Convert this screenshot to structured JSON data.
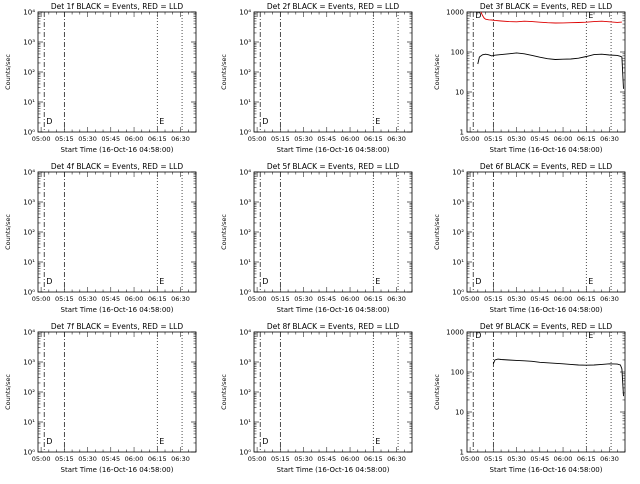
{
  "chart_data": [
    {
      "type": "line",
      "title": "Det 1f BLACK = Events, RED = LLD",
      "xlabel": "Start Time (16-Oct-16 04:58:00)",
      "ylabel": "Counts/sec",
      "ylog": true,
      "ylim": [
        1,
        10000
      ],
      "yticks": [
        "10⁰",
        "10¹",
        "10²",
        "10³",
        "10⁴"
      ],
      "xticks": [
        "05:00",
        "05:15",
        "05:30",
        "05:45",
        "06:00",
        "06:15",
        "06:30"
      ],
      "xlim": [
        "04:58",
        "06:40"
      ],
      "markers": [
        {
          "x": "05:02",
          "label": "D",
          "style": "dashdot"
        },
        {
          "x": "05:15",
          "label": "",
          "style": "dashdot"
        },
        {
          "x": "06:15",
          "label": "E",
          "style": "dotted"
        },
        {
          "x": "06:31",
          "label": "",
          "style": "dotted"
        }
      ],
      "series": []
    },
    {
      "type": "line",
      "title": "Det 2f BLACK = Events, RED = LLD",
      "xlabel": "Start Time (16-Oct-16 04:58:00)",
      "ylabel": "Counts/sec",
      "ylog": true,
      "ylim": [
        1,
        10000
      ],
      "yticks": [
        "10⁰",
        "10¹",
        "10²",
        "10³",
        "10⁴"
      ],
      "xticks": [
        "05:00",
        "05:15",
        "05:30",
        "05:45",
        "06:00",
        "06:15",
        "06:30"
      ],
      "xlim": [
        "04:58",
        "06:40"
      ],
      "markers": [
        {
          "x": "05:02",
          "label": "D",
          "style": "dashdot"
        },
        {
          "x": "05:15",
          "label": "",
          "style": "dashdot"
        },
        {
          "x": "06:15",
          "label": "E",
          "style": "dotted"
        },
        {
          "x": "06:31",
          "label": "",
          "style": "dotted"
        }
      ],
      "series": []
    },
    {
      "type": "line",
      "title": "Det 3f BLACK = Events, RED = LLD",
      "xlabel": "Start Time (16-Oct-16 04:58:00)",
      "ylabel": "Counts/sec",
      "ylog": true,
      "ylim": [
        1,
        1000
      ],
      "yticks": [
        "1",
        "10",
        "100",
        "1000"
      ],
      "xticks": [
        "05:00",
        "05:15",
        "05:30",
        "05:45",
        "06:00",
        "06:15",
        "06:30"
      ],
      "xlim": [
        "04:58",
        "06:40"
      ],
      "markers": [
        {
          "x": "05:02",
          "label": "D",
          "style": "dashdot"
        },
        {
          "x": "05:15",
          "label": "",
          "style": "dashdot"
        },
        {
          "x": "06:15",
          "label": "E",
          "style": "dotted"
        },
        {
          "x": "06:31",
          "label": "",
          "style": "dotted"
        }
      ],
      "series": [
        {
          "color": "#000000",
          "x": [
            "05:05",
            "05:06",
            "05:08",
            "05:10",
            "05:12",
            "05:14",
            "05:16",
            "05:20",
            "05:25",
            "05:30",
            "05:35",
            "05:40",
            "05:45",
            "05:50",
            "05:55",
            "06:00",
            "06:05",
            "06:10",
            "06:15",
            "06:20",
            "06:25",
            "06:30",
            "06:35",
            "06:37",
            "06:38",
            "06:39"
          ],
          "y": [
            50,
            75,
            85,
            88,
            85,
            80,
            83,
            86,
            90,
            95,
            90,
            82,
            74,
            68,
            65,
            66,
            67,
            70,
            77,
            86,
            88,
            84,
            82,
            78,
            75,
            12
          ]
        },
        {
          "color": "#dd0000",
          "x": [
            "05:07",
            "05:08",
            "05:09",
            "05:10",
            "05:12",
            "05:14",
            "05:16",
            "05:20",
            "05:25",
            "05:30",
            "05:35",
            "05:40",
            "05:45",
            "05:50",
            "05:55",
            "06:00",
            "06:05",
            "06:10",
            "06:15",
            "06:20",
            "06:25",
            "06:30",
            "06:35",
            "06:38"
          ],
          "y": [
            1000,
            820,
            710,
            660,
            640,
            630,
            615,
            595,
            575,
            570,
            590,
            575,
            555,
            540,
            530,
            535,
            540,
            545,
            555,
            575,
            590,
            570,
            550,
            560
          ]
        }
      ]
    },
    {
      "type": "line",
      "title": "Det 4f BLACK = Events, RED = LLD",
      "xlabel": "Start Time (16-Oct-16 04:58:00)",
      "ylabel": "Counts/sec",
      "ylog": true,
      "ylim": [
        1,
        10000
      ],
      "yticks": [
        "10⁰",
        "10¹",
        "10²",
        "10³",
        "10⁴"
      ],
      "xticks": [
        "05:00",
        "05:15",
        "05:30",
        "05:45",
        "06:00",
        "06:15",
        "06:30"
      ],
      "xlim": [
        "04:58",
        "06:40"
      ],
      "markers": [
        {
          "x": "05:02",
          "label": "D",
          "style": "dashdot"
        },
        {
          "x": "05:15",
          "label": "",
          "style": "dashdot"
        },
        {
          "x": "06:15",
          "label": "E",
          "style": "dotted"
        },
        {
          "x": "06:31",
          "label": "",
          "style": "dotted"
        }
      ],
      "series": []
    },
    {
      "type": "line",
      "title": "Det 5f BLACK = Events, RED = LLD",
      "xlabel": "Start Time (16-Oct-16 04:58:00)",
      "ylabel": "Counts/sec",
      "ylog": true,
      "ylim": [
        1,
        10000
      ],
      "yticks": [
        "10⁰",
        "10¹",
        "10²",
        "10³",
        "10⁴"
      ],
      "xticks": [
        "05:00",
        "05:15",
        "05:30",
        "05:45",
        "06:00",
        "06:15",
        "06:30"
      ],
      "xlim": [
        "04:58",
        "06:40"
      ],
      "markers": [
        {
          "x": "05:02",
          "label": "D",
          "style": "dashdot"
        },
        {
          "x": "05:15",
          "label": "",
          "style": "dashdot"
        },
        {
          "x": "06:15",
          "label": "E",
          "style": "dotted"
        },
        {
          "x": "06:31",
          "label": "",
          "style": "dotted"
        }
      ],
      "series": []
    },
    {
      "type": "line",
      "title": "Det 6f BLACK = Events, RED = LLD",
      "xlabel": "Start Time (16-Oct-16 04:58:00)",
      "ylabel": "Counts/sec",
      "ylog": true,
      "ylim": [
        1,
        10000
      ],
      "yticks": [
        "10⁰",
        "10¹",
        "10²",
        "10³",
        "10⁴"
      ],
      "xticks": [
        "05:00",
        "05:15",
        "05:30",
        "05:45",
        "06:00",
        "06:15",
        "06:30"
      ],
      "xlim": [
        "04:58",
        "06:40"
      ],
      "markers": [
        {
          "x": "05:02",
          "label": "D",
          "style": "dashdot"
        },
        {
          "x": "05:15",
          "label": "",
          "style": "dashdot"
        },
        {
          "x": "06:15",
          "label": "E",
          "style": "dotted"
        },
        {
          "x": "06:31",
          "label": "",
          "style": "dotted"
        }
      ],
      "series": []
    },
    {
      "type": "line",
      "title": "Det 7f BLACK = Events, RED = LLD",
      "xlabel": "Start Time (16-Oct-16 04:58:00)",
      "ylabel": "Counts/sec",
      "ylog": true,
      "ylim": [
        1,
        10000
      ],
      "yticks": [
        "10⁰",
        "10¹",
        "10²",
        "10³",
        "10⁴"
      ],
      "xticks": [
        "05:00",
        "05:15",
        "05:30",
        "05:45",
        "06:00",
        "06:15",
        "06:30"
      ],
      "xlim": [
        "04:58",
        "06:40"
      ],
      "markers": [
        {
          "x": "05:02",
          "label": "D",
          "style": "dashdot"
        },
        {
          "x": "05:15",
          "label": "",
          "style": "dashdot"
        },
        {
          "x": "06:15",
          "label": "E",
          "style": "dotted"
        },
        {
          "x": "06:31",
          "label": "",
          "style": "dotted"
        }
      ],
      "series": []
    },
    {
      "type": "line",
      "title": "Det 8f BLACK = Events, RED = LLD",
      "xlabel": "Start Time (16-Oct-16 04:58:00)",
      "ylabel": "Counts/sec",
      "ylog": true,
      "ylim": [
        1,
        10000
      ],
      "yticks": [
        "10⁰",
        "10¹",
        "10²",
        "10³",
        "10⁴"
      ],
      "xticks": [
        "05:00",
        "05:15",
        "05:30",
        "05:45",
        "06:00",
        "06:15",
        "06:30"
      ],
      "xlim": [
        "04:58",
        "06:40"
      ],
      "markers": [
        {
          "x": "05:02",
          "label": "D",
          "style": "dashdot"
        },
        {
          "x": "05:15",
          "label": "",
          "style": "dashdot"
        },
        {
          "x": "06:15",
          "label": "E",
          "style": "dotted"
        },
        {
          "x": "06:31",
          "label": "",
          "style": "dotted"
        }
      ],
      "series": []
    },
    {
      "type": "line",
      "title": "Det 9f BLACK = Events, RED = LLD",
      "xlabel": "Start Time (16-Oct-16 04:58:00)",
      "ylabel": "Counts/sec",
      "ylog": true,
      "ylim": [
        1,
        1000
      ],
      "yticks": [
        "1",
        "10",
        "100",
        "1000"
      ],
      "xticks": [
        "05:00",
        "05:15",
        "05:30",
        "05:45",
        "06:00",
        "06:15",
        "06:30"
      ],
      "xlim": [
        "04:58",
        "06:40"
      ],
      "markers": [
        {
          "x": "05:02",
          "label": "D",
          "style": "dashdot"
        },
        {
          "x": "05:15",
          "label": "",
          "style": "dashdot"
        },
        {
          "x": "06:15",
          "label": "E",
          "style": "dotted"
        },
        {
          "x": "06:31",
          "label": "",
          "style": "dotted"
        }
      ],
      "series": [
        {
          "color": "#000000",
          "x": [
            "05:15",
            "05:16",
            "05:18",
            "05:20",
            "05:25",
            "05:30",
            "05:35",
            "05:40",
            "05:45",
            "05:50",
            "05:55",
            "06:00",
            "06:05",
            "06:10",
            "06:15",
            "06:20",
            "06:25",
            "06:30",
            "06:35",
            "06:37",
            "06:38",
            "06:39"
          ],
          "y": [
            160,
            200,
            210,
            205,
            200,
            195,
            190,
            185,
            175,
            170,
            165,
            160,
            155,
            150,
            148,
            150,
            155,
            160,
            158,
            150,
            120,
            25
          ]
        }
      ]
    }
  ]
}
